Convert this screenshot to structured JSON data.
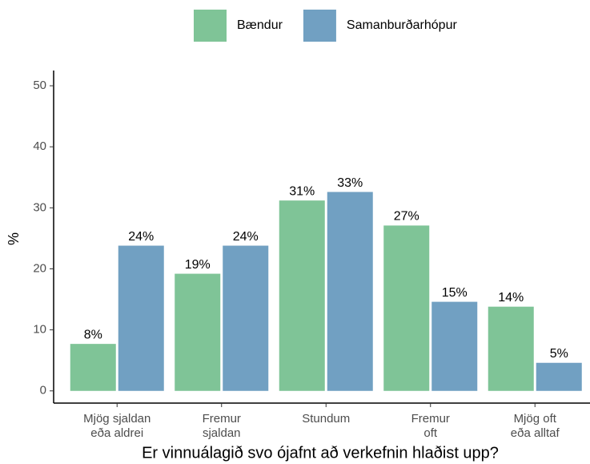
{
  "chart_data": {
    "type": "bar",
    "x_label": "Er vinnuálagið svo ójafnt að verkefnin hlaðist upp?",
    "y_label": "%",
    "categories": [
      "Mjög sjaldan\neða aldrei",
      "Fremur\nsjaldan",
      "Stundum",
      "Fremur\noft",
      "Mjög oft\neða alltaf"
    ],
    "series": [
      {
        "name": "Bændur",
        "color": "#7fc497",
        "values": [
          7.7,
          19.2,
          31.2,
          27.1,
          13.8
        ],
        "value_labels": [
          "8%",
          "19%",
          "31%",
          "27%",
          "14%"
        ]
      },
      {
        "name": "Samanburðarhópur",
        "color": "#71a0c2",
        "values": [
          23.8,
          23.8,
          32.6,
          14.6,
          4.6
        ],
        "value_labels": [
          "24%",
          "24%",
          "33%",
          "15%",
          "5%"
        ]
      }
    ],
    "ylim": [
      -2,
      52.5
    ],
    "yticks": [
      0,
      10,
      20,
      30,
      40,
      50
    ],
    "legend": "top",
    "grid": false
  }
}
